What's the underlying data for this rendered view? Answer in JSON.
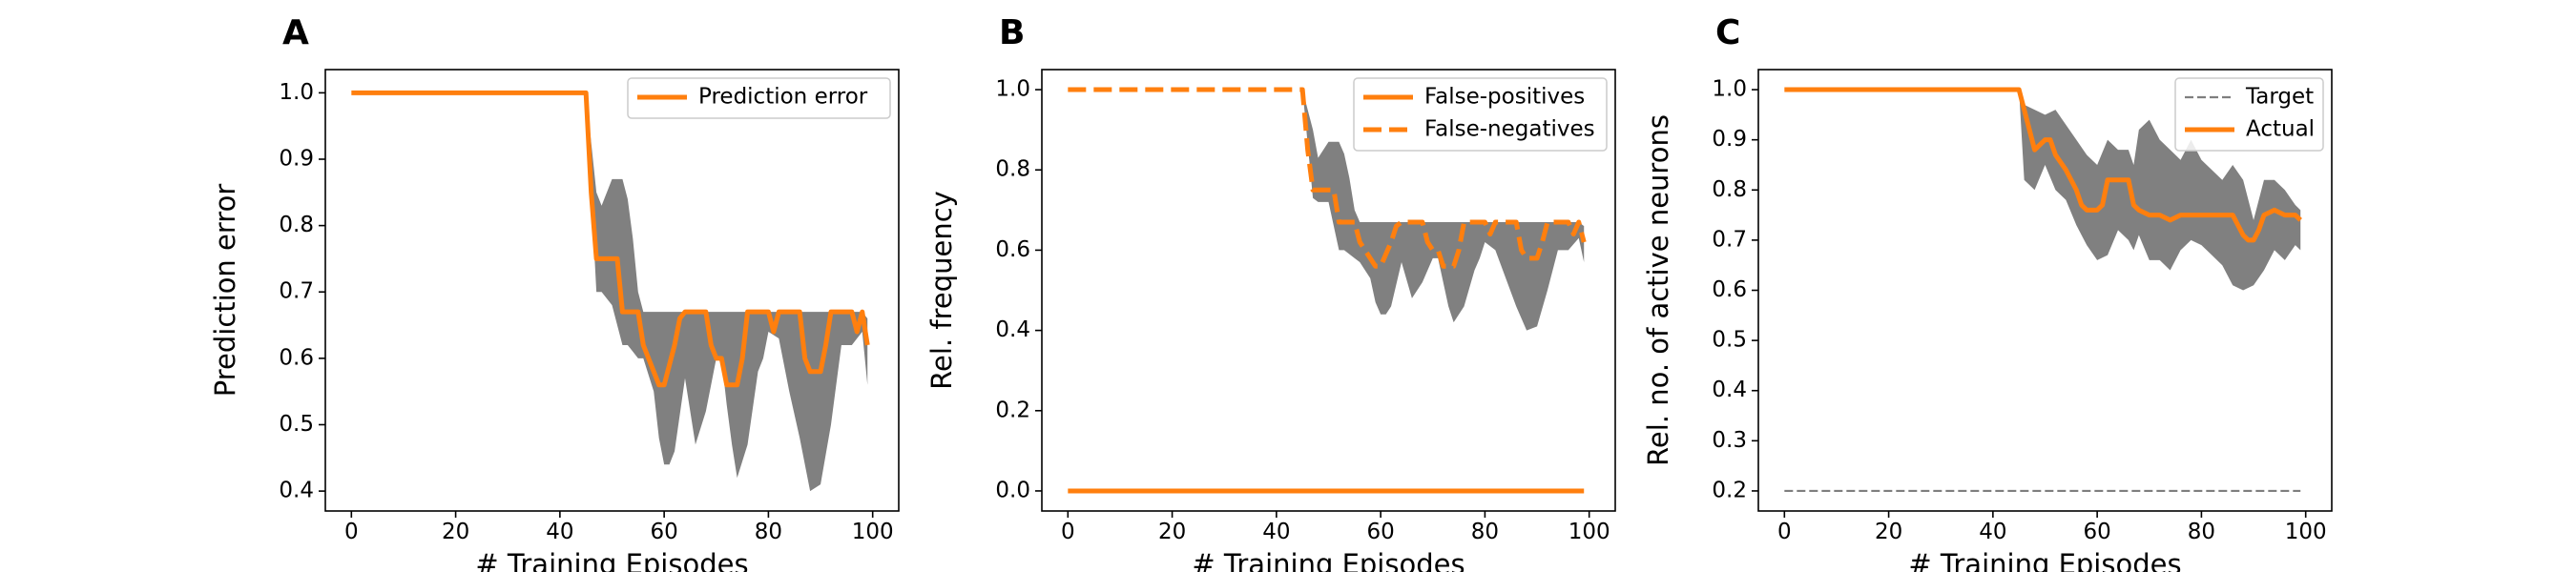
{
  "chart_data": [
    {
      "panel": "A",
      "type": "line",
      "xlabel": "# Training Episodes",
      "ylabel": "Prediction error",
      "xlim": [
        -5,
        105
      ],
      "ylim": [
        0.37,
        1.035
      ],
      "xticks": [
        0,
        20,
        40,
        60,
        80,
        100
      ],
      "yticks": [
        0.4,
        0.5,
        0.6,
        0.7,
        0.8,
        0.9,
        1.0
      ],
      "ytick_decimals": 1,
      "legend": "top-right",
      "band": {
        "color": "#808080",
        "x": [
          45,
          47,
          48,
          50,
          52,
          53,
          54,
          55,
          56,
          58,
          59,
          60,
          61,
          62,
          64,
          66,
          68,
          70,
          71,
          72,
          73,
          74,
          76,
          78,
          79,
          80,
          82,
          84,
          86,
          88,
          90,
          92,
          94,
          96,
          98,
          99
        ],
        "upper": [
          1.0,
          0.85,
          0.83,
          0.87,
          0.87,
          0.84,
          0.78,
          0.7,
          0.67,
          0.67,
          0.67,
          0.67,
          0.67,
          0.67,
          0.67,
          0.67,
          0.67,
          0.67,
          0.67,
          0.67,
          0.67,
          0.67,
          0.67,
          0.67,
          0.67,
          0.67,
          0.67,
          0.67,
          0.67,
          0.67,
          0.67,
          0.67,
          0.67,
          0.67,
          0.67,
          0.66
        ],
        "lower": [
          1.0,
          0.7,
          0.7,
          0.68,
          0.62,
          0.62,
          0.61,
          0.6,
          0.6,
          0.55,
          0.48,
          0.44,
          0.44,
          0.46,
          0.57,
          0.47,
          0.52,
          0.6,
          0.6,
          0.53,
          0.47,
          0.42,
          0.47,
          0.58,
          0.6,
          0.64,
          0.63,
          0.55,
          0.48,
          0.4,
          0.41,
          0.5,
          0.62,
          0.62,
          0.64,
          0.56
        ]
      },
      "series": [
        {
          "name": "Prediction error",
          "color": "#ff7f0e",
          "style": "solid",
          "x": [
            0,
            45,
            46,
            47,
            48,
            51,
            52,
            55,
            56,
            57,
            58,
            59,
            60,
            61,
            62,
            63,
            64,
            68,
            69,
            70,
            71,
            72,
            74,
            75,
            76,
            80,
            81,
            82,
            86,
            87,
            88,
            90,
            91,
            92,
            96,
            97,
            98,
            99
          ],
          "y": [
            1.0,
            1.0,
            0.85,
            0.75,
            0.75,
            0.75,
            0.67,
            0.67,
            0.62,
            0.6,
            0.58,
            0.56,
            0.56,
            0.59,
            0.62,
            0.66,
            0.67,
            0.67,
            0.62,
            0.6,
            0.6,
            0.56,
            0.56,
            0.6,
            0.67,
            0.67,
            0.64,
            0.67,
            0.67,
            0.6,
            0.58,
            0.58,
            0.62,
            0.67,
            0.67,
            0.64,
            0.67,
            0.62
          ]
        }
      ]
    },
    {
      "panel": "B",
      "type": "line",
      "xlabel": "# Training Episodes",
      "ylabel": "Rel. frequency",
      "xlim": [
        -5,
        105
      ],
      "ylim": [
        -0.05,
        1.05
      ],
      "xticks": [
        0,
        20,
        40,
        60,
        80,
        100
      ],
      "yticks": [
        0.0,
        0.2,
        0.4,
        0.6,
        0.8,
        1.0
      ],
      "ytick_decimals": 1,
      "legend": "top-right",
      "band": {
        "color": "#808080",
        "x": [
          45,
          47,
          48,
          50,
          52,
          53,
          54,
          55,
          56,
          58,
          59,
          60,
          61,
          62,
          64,
          66,
          68,
          70,
          71,
          72,
          73,
          74,
          76,
          78,
          79,
          80,
          82,
          84,
          86,
          88,
          90,
          92,
          94,
          96,
          98,
          99
        ],
        "upper": [
          1.0,
          0.9,
          0.83,
          0.87,
          0.87,
          0.84,
          0.78,
          0.7,
          0.67,
          0.67,
          0.67,
          0.67,
          0.67,
          0.67,
          0.67,
          0.67,
          0.67,
          0.67,
          0.67,
          0.67,
          0.67,
          0.67,
          0.67,
          0.67,
          0.67,
          0.67,
          0.67,
          0.67,
          0.67,
          0.67,
          0.67,
          0.67,
          0.67,
          0.67,
          0.67,
          0.66
        ],
        "lower": [
          1.0,
          0.73,
          0.72,
          0.72,
          0.6,
          0.6,
          0.59,
          0.58,
          0.57,
          0.53,
          0.47,
          0.44,
          0.44,
          0.46,
          0.57,
          0.48,
          0.52,
          0.58,
          0.58,
          0.52,
          0.46,
          0.42,
          0.46,
          0.55,
          0.58,
          0.62,
          0.6,
          0.53,
          0.46,
          0.4,
          0.41,
          0.5,
          0.6,
          0.6,
          0.63,
          0.57
        ]
      },
      "series": [
        {
          "name": "False-positives",
          "color": "#ff7f0e",
          "style": "solid",
          "x": [
            0,
            99
          ],
          "y": [
            0.0,
            0.0
          ]
        },
        {
          "name": "False-negatives",
          "color": "#ff7f0e",
          "style": "dashed",
          "x": [
            0,
            45,
            46,
            47,
            48,
            51,
            52,
            55,
            56,
            57,
            58,
            59,
            60,
            61,
            62,
            63,
            64,
            68,
            69,
            70,
            71,
            72,
            74,
            75,
            76,
            80,
            81,
            82,
            86,
            87,
            88,
            90,
            91,
            92,
            96,
            97,
            98,
            99
          ],
          "y": [
            1.0,
            1.0,
            0.85,
            0.75,
            0.75,
            0.75,
            0.67,
            0.67,
            0.62,
            0.6,
            0.58,
            0.56,
            0.56,
            0.59,
            0.62,
            0.66,
            0.67,
            0.67,
            0.62,
            0.6,
            0.6,
            0.56,
            0.56,
            0.6,
            0.67,
            0.67,
            0.64,
            0.67,
            0.67,
            0.6,
            0.58,
            0.58,
            0.62,
            0.67,
            0.67,
            0.64,
            0.67,
            0.62
          ]
        }
      ]
    },
    {
      "panel": "C",
      "type": "line",
      "xlabel": "# Training Episodes",
      "ylabel": "Rel. no. of active neurons",
      "xlim": [
        -5,
        105
      ],
      "ylim": [
        0.16,
        1.04
      ],
      "xticks": [
        0,
        20,
        40,
        60,
        80,
        100
      ],
      "yticks": [
        0.2,
        0.3,
        0.4,
        0.5,
        0.6,
        0.7,
        0.8,
        0.9,
        1.0
      ],
      "ytick_decimals": 1,
      "legend": "top-right",
      "band": {
        "color": "#808080",
        "x": [
          45,
          46,
          48,
          50,
          52,
          54,
          56,
          58,
          60,
          62,
          64,
          66,
          67,
          68,
          70,
          72,
          74,
          76,
          78,
          80,
          82,
          84,
          86,
          88,
          90,
          92,
          94,
          96,
          98,
          99
        ],
        "upper": [
          1.0,
          0.97,
          0.96,
          0.95,
          0.96,
          0.93,
          0.9,
          0.87,
          0.85,
          0.9,
          0.88,
          0.88,
          0.85,
          0.92,
          0.94,
          0.9,
          0.88,
          0.86,
          0.9,
          0.86,
          0.84,
          0.82,
          0.85,
          0.82,
          0.74,
          0.82,
          0.82,
          0.8,
          0.77,
          0.76
        ],
        "lower": [
          1.0,
          0.82,
          0.8,
          0.85,
          0.8,
          0.78,
          0.73,
          0.69,
          0.66,
          0.67,
          0.72,
          0.7,
          0.68,
          0.71,
          0.66,
          0.66,
          0.64,
          0.68,
          0.7,
          0.69,
          0.67,
          0.65,
          0.61,
          0.6,
          0.61,
          0.64,
          0.68,
          0.66,
          0.69,
          0.68
        ]
      },
      "series": [
        {
          "name": "Target",
          "color": "#7f7f7f",
          "style": "dashed-thin",
          "x": [
            0,
            99
          ],
          "y": [
            0.2,
            0.2
          ]
        },
        {
          "name": "Actual",
          "color": "#ff7f0e",
          "style": "solid",
          "x": [
            0,
            45,
            47,
            48,
            50,
            51,
            52,
            54,
            56,
            57,
            58,
            60,
            61,
            62,
            64,
            66,
            67,
            68,
            70,
            72,
            74,
            76,
            78,
            80,
            82,
            84,
            86,
            87,
            88,
            89,
            90,
            91,
            92,
            94,
            96,
            98,
            99
          ],
          "y": [
            1.0,
            1.0,
            0.92,
            0.88,
            0.9,
            0.9,
            0.87,
            0.84,
            0.8,
            0.77,
            0.76,
            0.76,
            0.77,
            0.82,
            0.82,
            0.82,
            0.77,
            0.76,
            0.75,
            0.75,
            0.74,
            0.75,
            0.75,
            0.75,
            0.75,
            0.75,
            0.75,
            0.73,
            0.71,
            0.7,
            0.7,
            0.72,
            0.75,
            0.76,
            0.75,
            0.75,
            0.74
          ]
        }
      ]
    }
  ]
}
